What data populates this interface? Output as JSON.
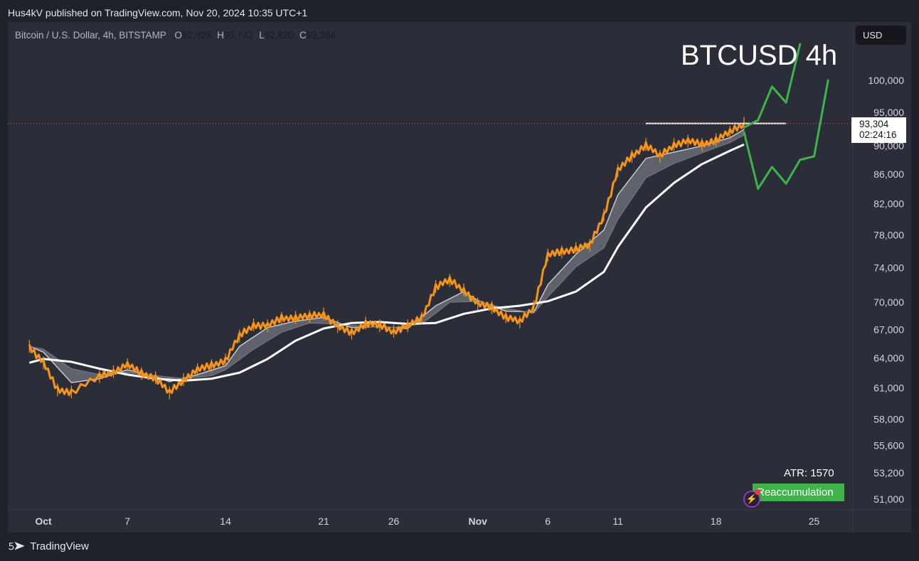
{
  "header": {
    "published_text": "Hus4kV published on TradingView.com, Nov 20, 2024 10:35 UTC+1",
    "symbol_text": "Bitcoin / U.S. Dollar, 4h, BITSTAMP",
    "ohlc": [
      {
        "label": "O",
        "value": "92,928"
      },
      {
        "label": "H",
        "value": "93,742"
      },
      {
        "label": "L",
        "value": "92,820"
      },
      {
        "label": "C",
        "value": "93,304"
      }
    ],
    "currency_button": "USD"
  },
  "annotation_title": "BTCUSD 4h",
  "price_tag": {
    "price": "93,304",
    "countdown": "02:24:16"
  },
  "indicators": {
    "atr_text": "ATR: 1570",
    "phase_label": "Reaccumulation"
  },
  "footer": {
    "brand": "TradingView"
  },
  "colors": {
    "background": "#2b2e39",
    "candle": "#f7931a",
    "fast_ema": "#c8c8c8",
    "slow_ema": "#d8d8d8",
    "slow_ma": "#ffffff",
    "projection": "#3fb34a",
    "last_price_line": "#e05555"
  },
  "chart_data": {
    "type": "line",
    "y_scale": "log",
    "ylim": [
      49800,
      108000
    ],
    "y_ticks": [
      "100,000",
      "95,000",
      "90,000",
      "86,000",
      "82,000",
      "78,000",
      "74,000",
      "70,000",
      "67,000",
      "64,000",
      "61,000",
      "58,000",
      "55,600",
      "53,200",
      "51,000"
    ],
    "x_ticks": [
      "Oct",
      "7",
      "14",
      "21",
      "26",
      "Nov",
      "6",
      "11",
      "18",
      "25"
    ],
    "x_tick_dates": [
      "2024-10-01",
      "2024-10-07",
      "2024-10-14",
      "2024-10-21",
      "2024-10-26",
      "2024-11-01",
      "2024-11-06",
      "2024-11-11",
      "2024-11-18",
      "2024-11-25"
    ],
    "series": [
      {
        "role": "price",
        "points": [
          [
            "2024-09-30",
            65200
          ],
          [
            "2024-10-01",
            63500
          ],
          [
            "2024-10-02",
            60800
          ],
          [
            "2024-10-03",
            60600
          ],
          [
            "2024-10-05",
            62100
          ],
          [
            "2024-10-06",
            62600
          ],
          [
            "2024-10-07",
            63300
          ],
          [
            "2024-10-08",
            62400
          ],
          [
            "2024-10-09",
            62000
          ],
          [
            "2024-10-10",
            60500
          ],
          [
            "2024-10-11",
            61800
          ],
          [
            "2024-10-12",
            62800
          ],
          [
            "2024-10-13",
            63200
          ],
          [
            "2024-10-14",
            63800
          ],
          [
            "2024-10-15",
            66300
          ],
          [
            "2024-10-16",
            67500
          ],
          [
            "2024-10-17",
            67400
          ],
          [
            "2024-10-18",
            68200
          ],
          [
            "2024-10-19",
            68300
          ],
          [
            "2024-10-20",
            68400
          ],
          [
            "2024-10-21",
            68700
          ],
          [
            "2024-10-22",
            67300
          ],
          [
            "2024-10-23",
            66600
          ],
          [
            "2024-10-24",
            67700
          ],
          [
            "2024-10-25",
            67400
          ],
          [
            "2024-10-26",
            66800
          ],
          [
            "2024-10-27",
            67400
          ],
          [
            "2024-10-28",
            68200
          ],
          [
            "2024-10-29",
            71800
          ],
          [
            "2024-10-30",
            72500
          ],
          [
            "2024-10-31",
            71400
          ],
          [
            "2024-11-01",
            69800
          ],
          [
            "2024-11-02",
            69400
          ],
          [
            "2024-11-03",
            68400
          ],
          [
            "2024-11-04",
            67800
          ],
          [
            "2024-11-05",
            69500
          ],
          [
            "2024-11-06",
            75500
          ],
          [
            "2024-11-07",
            75900
          ],
          [
            "2024-11-08",
            76300
          ],
          [
            "2024-11-09",
            76700
          ],
          [
            "2024-11-10",
            80500
          ],
          [
            "2024-11-11",
            86500
          ],
          [
            "2024-11-12",
            88500
          ],
          [
            "2024-11-13",
            90200
          ],
          [
            "2024-11-14",
            88500
          ],
          [
            "2024-11-15",
            90200
          ],
          [
            "2024-11-16",
            90700
          ],
          [
            "2024-11-17",
            90200
          ],
          [
            "2024-11-18",
            90900
          ],
          [
            "2024-11-19",
            92000
          ],
          [
            "2024-11-20",
            93304
          ]
        ]
      },
      {
        "role": "fast_ema",
        "points": [
          [
            "2024-09-30",
            65200
          ],
          [
            "2024-10-01",
            64600
          ],
          [
            "2024-10-03",
            61500
          ],
          [
            "2024-10-05",
            61900
          ],
          [
            "2024-10-07",
            62800
          ],
          [
            "2024-10-09",
            62100
          ],
          [
            "2024-10-10",
            61600
          ],
          [
            "2024-10-12",
            62300
          ],
          [
            "2024-10-14",
            63200
          ],
          [
            "2024-10-15",
            65200
          ],
          [
            "2024-10-17",
            67200
          ],
          [
            "2024-10-19",
            67900
          ],
          [
            "2024-10-21",
            68300
          ],
          [
            "2024-10-23",
            67200
          ],
          [
            "2024-10-25",
            67300
          ],
          [
            "2024-10-27",
            67100
          ],
          [
            "2024-10-29",
            69600
          ],
          [
            "2024-10-31",
            71200
          ],
          [
            "2024-11-01",
            70200
          ],
          [
            "2024-11-03",
            69000
          ],
          [
            "2024-11-05",
            68900
          ],
          [
            "2024-11-06",
            72000
          ],
          [
            "2024-11-08",
            75600
          ],
          [
            "2024-11-10",
            78600
          ],
          [
            "2024-11-11",
            83200
          ],
          [
            "2024-11-13",
            88200
          ],
          [
            "2024-11-15",
            89100
          ],
          [
            "2024-11-17",
            90000
          ],
          [
            "2024-11-19",
            91200
          ],
          [
            "2024-11-20",
            92400
          ]
        ]
      },
      {
        "role": "slow_ema",
        "points": [
          [
            "2024-09-30",
            65200
          ],
          [
            "2024-10-01",
            64900
          ],
          [
            "2024-10-03",
            62900
          ],
          [
            "2024-10-05",
            62300
          ],
          [
            "2024-10-07",
            62500
          ],
          [
            "2024-10-09",
            62200
          ],
          [
            "2024-10-11",
            61900
          ],
          [
            "2024-10-13",
            62200
          ],
          [
            "2024-10-14",
            62800
          ],
          [
            "2024-10-16",
            64900
          ],
          [
            "2024-10-18",
            66700
          ],
          [
            "2024-10-20",
            67700
          ],
          [
            "2024-10-22",
            67600
          ],
          [
            "2024-10-24",
            67300
          ],
          [
            "2024-10-26",
            67200
          ],
          [
            "2024-10-28",
            67600
          ],
          [
            "2024-10-30",
            70000
          ],
          [
            "2024-11-01",
            70100
          ],
          [
            "2024-11-03",
            69300
          ],
          [
            "2024-11-05",
            68800
          ],
          [
            "2024-11-06",
            70600
          ],
          [
            "2024-11-08",
            74100
          ],
          [
            "2024-11-10",
            76400
          ],
          [
            "2024-11-11",
            80000
          ],
          [
            "2024-11-13",
            85500
          ],
          [
            "2024-11-15",
            87500
          ],
          [
            "2024-11-17",
            89000
          ],
          [
            "2024-11-19",
            90500
          ],
          [
            "2024-11-20",
            91600
          ]
        ]
      },
      {
        "role": "slow_ma",
        "points": [
          [
            "2024-09-30",
            63500
          ],
          [
            "2024-10-01",
            63900
          ],
          [
            "2024-10-03",
            63600
          ],
          [
            "2024-10-05",
            62900
          ],
          [
            "2024-10-07",
            62300
          ],
          [
            "2024-10-09",
            61900
          ],
          [
            "2024-10-11",
            61700
          ],
          [
            "2024-10-13",
            61900
          ],
          [
            "2024-10-15",
            62500
          ],
          [
            "2024-10-17",
            63900
          ],
          [
            "2024-10-19",
            65800
          ],
          [
            "2024-10-21",
            67100
          ],
          [
            "2024-10-23",
            67700
          ],
          [
            "2024-10-25",
            67800
          ],
          [
            "2024-10-27",
            67600
          ],
          [
            "2024-10-29",
            67700
          ],
          [
            "2024-10-31",
            68700
          ],
          [
            "2024-11-02",
            69300
          ],
          [
            "2024-11-04",
            69600
          ],
          [
            "2024-11-06",
            70100
          ],
          [
            "2024-11-08",
            71200
          ],
          [
            "2024-11-10",
            73500
          ],
          [
            "2024-11-11",
            76500
          ],
          [
            "2024-11-13",
            81500
          ],
          [
            "2024-11-15",
            84800
          ],
          [
            "2024-11-17",
            87400
          ],
          [
            "2024-11-19",
            89300
          ],
          [
            "2024-11-20",
            90200
          ]
        ]
      }
    ],
    "resistance": {
      "value": 93304,
      "from": "2024-11-13",
      "to": "2024-11-23"
    },
    "projections": [
      {
        "scenario": "bullish",
        "points": [
          [
            "2024-11-20",
            92700
          ],
          [
            "2024-11-21",
            93800
          ],
          [
            "2024-11-22",
            99000
          ],
          [
            "2024-11-23",
            96500
          ],
          [
            "2024-11-24",
            106000
          ]
        ]
      },
      {
        "scenario": "retest",
        "points": [
          [
            "2024-11-20",
            92000
          ],
          [
            "2024-11-21",
            84000
          ],
          [
            "2024-11-22",
            87000
          ],
          [
            "2024-11-23",
            84700
          ],
          [
            "2024-11-24",
            88000
          ],
          [
            "2024-11-25",
            88500
          ],
          [
            "2024-11-26",
            100000
          ]
        ]
      }
    ]
  }
}
